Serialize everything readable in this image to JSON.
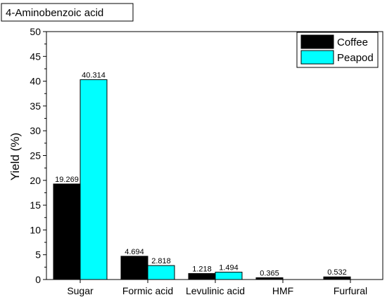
{
  "chart_data": {
    "type": "bar",
    "title": "4-Aminobenzoic acid",
    "xlabel": "",
    "ylabel": "Yield (%)",
    "ylim": [
      0,
      50
    ],
    "yticks": [
      0,
      5,
      10,
      15,
      20,
      25,
      30,
      35,
      40,
      45,
      50
    ],
    "categories": [
      "Sugar",
      "Formic acid",
      "Levulinic acid",
      "HMF",
      "Furfural"
    ],
    "series": [
      {
        "name": "Coffee",
        "color": "#000000",
        "values": [
          19.269,
          4.694,
          1.218,
          0.365,
          0.532
        ],
        "labels": [
          "19.269",
          "4.694",
          "1.218",
          "0.365",
          "0.532"
        ]
      },
      {
        "name": "Peapod",
        "color": "#00FFFF",
        "values": [
          40.314,
          2.818,
          1.494,
          null,
          null
        ],
        "labels": [
          "40.314",
          "2.818",
          "1.494",
          null,
          null
        ]
      }
    ],
    "legend": "top-right",
    "grid": false
  }
}
